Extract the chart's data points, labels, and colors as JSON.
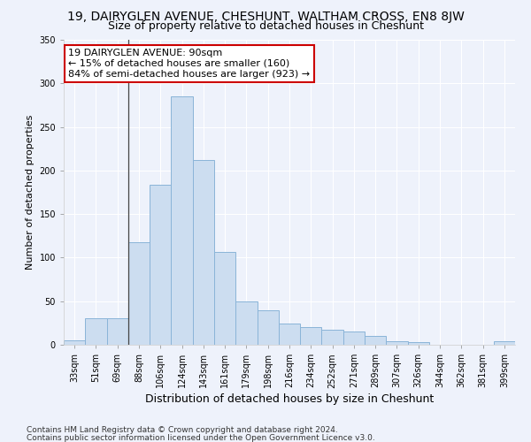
{
  "title1": "19, DAIRYGLEN AVENUE, CHESHUNT, WALTHAM CROSS, EN8 8JW",
  "title2": "Size of property relative to detached houses in Cheshunt",
  "xlabel": "Distribution of detached houses by size in Cheshunt",
  "ylabel": "Number of detached properties",
  "footer1": "Contains HM Land Registry data © Crown copyright and database right 2024.",
  "footer2": "Contains public sector information licensed under the Open Government Licence v3.0.",
  "categories": [
    "33sqm",
    "51sqm",
    "69sqm",
    "88sqm",
    "106sqm",
    "124sqm",
    "143sqm",
    "161sqm",
    "179sqm",
    "198sqm",
    "216sqm",
    "234sqm",
    "252sqm",
    "271sqm",
    "289sqm",
    "307sqm",
    "326sqm",
    "344sqm",
    "362sqm",
    "381sqm",
    "399sqm"
  ],
  "values": [
    5,
    30,
    30,
    118,
    184,
    285,
    212,
    107,
    50,
    40,
    24,
    20,
    17,
    15,
    10,
    4,
    3,
    0,
    0,
    0,
    4
  ],
  "bar_color": "#ccddf0",
  "bar_edge_color": "#8ab4d8",
  "vline_x": 2.5,
  "vline_color": "#444444",
  "annotation_line1": "19 DAIRYGLEN AVENUE: 90sqm",
  "annotation_line2": "← 15% of detached houses are smaller (160)",
  "annotation_line3": "84% of semi-detached houses are larger (923) →",
  "box_edge_color": "#cc0000",
  "ylim": [
    0,
    350
  ],
  "yticks": [
    0,
    50,
    100,
    150,
    200,
    250,
    300,
    350
  ],
  "bg_color": "#eef2fb",
  "grid_color": "#ffffff",
  "title1_fontsize": 10,
  "title2_fontsize": 9,
  "xlabel_fontsize": 9,
  "ylabel_fontsize": 8,
  "tick_fontsize": 7,
  "annot_fontsize": 8,
  "footer_fontsize": 6.5
}
